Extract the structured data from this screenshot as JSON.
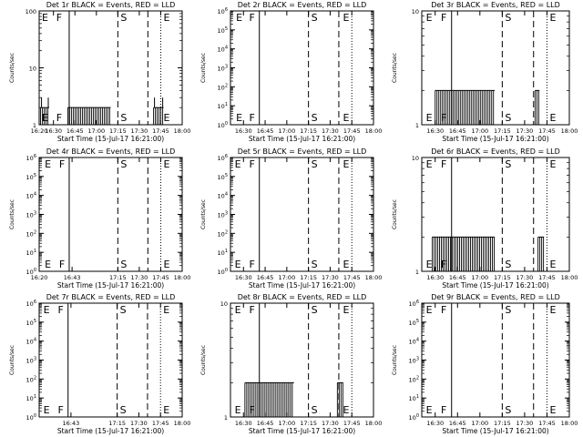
{
  "figure": {
    "shared": {
      "ylabel": "Counts/sec",
      "xlabel": "Start Time (15-Jul-17 16:21:00)",
      "time_ticks": [
        "16:30",
        "16:45",
        "17:00",
        "17:15",
        "17:30",
        "17:45",
        "18:00"
      ],
      "time_ticks_det1r": [
        "16:20",
        "16:30",
        "16:45",
        "17:00",
        "17:15",
        "17:30",
        "17:45",
        "18:00"
      ],
      "series": [
        "BLACK = Events",
        "RED = LLD"
      ],
      "colors": {
        "events": "#000000",
        "lld": "#ff0000",
        "axes": "#000000",
        "background": "#ffffff"
      }
    }
  },
  "chart_data": [
    {
      "title": "Det 1r BLACK = Events, RED = LLD",
      "type": "line",
      "scale": "log",
      "ylim": [
        1,
        100
      ],
      "y_ticks": [
        "1",
        "10",
        "100"
      ],
      "xlim": [
        "16:20",
        "18:00"
      ],
      "x_ticks": [
        "16:20",
        "16:30",
        "16:45",
        "17:00",
        "17:15",
        "17:30",
        "17:45",
        "18:00"
      ],
      "markers": [
        {
          "label": "E",
          "time": "16:20"
        },
        {
          "label": "F",
          "time": "16:30"
        },
        {
          "label": "S",
          "time": "17:15"
        },
        {
          "label": "E",
          "time": "17:45"
        }
      ],
      "solid_line_time": "16:41",
      "dotted_line_times": [
        "17:45",
        "18:00"
      ],
      "dashed_line_times": [
        "17:15",
        "17:36"
      ],
      "events": [
        {
          "from": "16:21",
          "to": "16:27",
          "value": 2,
          "spike": 3
        },
        {
          "from": "16:40",
          "to": "17:10",
          "value": 2
        },
        {
          "from": "17:40",
          "to": "17:47",
          "value": 2,
          "spike": 3
        }
      ]
    },
    {
      "title": "Det 2r BLACK = Events, RED = LLD",
      "type": "line",
      "scale": "log",
      "ylim": [
        1,
        1000000
      ],
      "y_ticks": [
        "10^0",
        "10^1",
        "10^2",
        "10^3",
        "10^4",
        "10^5",
        "10^6"
      ],
      "xlim": [
        "16:21",
        "18:00"
      ],
      "x_ticks": [
        "16:30",
        "16:45",
        "17:00",
        "17:15",
        "17:30",
        "17:45",
        "18:00"
      ],
      "markers": [
        {
          "label": "E",
          "time": "16:23"
        },
        {
          "label": "F",
          "time": "16:32"
        },
        {
          "label": "S",
          "time": "17:15"
        },
        {
          "label": "E",
          "time": "17:37"
        }
      ],
      "solid_line_time": "16:41",
      "dotted_line_times": [
        "17:45",
        "18:00"
      ],
      "dashed_line_times": [
        "17:15",
        "17:36"
      ],
      "events": []
    },
    {
      "title": "Det 3r BLACK = Events, RED = LLD",
      "type": "line",
      "scale": "log",
      "ylim": [
        1,
        10
      ],
      "y_ticks": [
        "1",
        "10"
      ],
      "xlim": [
        "16:21",
        "18:00"
      ],
      "x_ticks": [
        "16:30",
        "16:45",
        "17:00",
        "17:15",
        "17:30",
        "17:45",
        "18:00"
      ],
      "markers": [
        {
          "label": "E",
          "time": "16:22"
        },
        {
          "label": "F",
          "time": "16:32"
        },
        {
          "label": "S",
          "time": "17:15"
        },
        {
          "label": "E",
          "time": "17:45"
        }
      ],
      "solid_line_time": "16:41",
      "dotted_line_times": [
        "17:45",
        "18:00"
      ],
      "dashed_line_times": [
        "17:15",
        "17:36"
      ],
      "events": [
        {
          "from": "16:30",
          "to": "17:10",
          "value": 2
        },
        {
          "from": "17:37",
          "to": "17:40",
          "value": 2
        }
      ]
    },
    {
      "title": "Det 4r BLACK = Events, RED = LLD",
      "type": "line",
      "scale": "log",
      "ylim": [
        1,
        1000000
      ],
      "y_ticks": [
        "10^0",
        "10^1",
        "10^2",
        "10^3",
        "10^4",
        "10^5",
        "10^6"
      ],
      "xlim": [
        "16:20",
        "18:00"
      ],
      "x_ticks": [
        "16:20",
        "16:43",
        "17:15",
        "17:30",
        "17:45",
        "18:00"
      ],
      "markers": [
        {
          "label": "E",
          "time": "16:22"
        },
        {
          "label": "F",
          "time": "16:32"
        },
        {
          "label": "S",
          "time": "17:15"
        },
        {
          "label": "E",
          "time": "17:45"
        }
      ],
      "solid_line_time": "16:41",
      "dotted_line_times": [
        "17:45",
        "18:00"
      ],
      "dashed_line_times": [
        "17:15",
        "17:36"
      ],
      "events": []
    },
    {
      "title": "Det 5r BLACK = Events, RED = LLD",
      "type": "line",
      "scale": "log",
      "ylim": [
        1,
        1000000
      ],
      "y_ticks": [
        "10^0",
        "10^1",
        "10^2",
        "10^3",
        "10^4",
        "10^5",
        "10^6"
      ],
      "xlim": [
        "16:21",
        "18:00"
      ],
      "x_ticks": [
        "16:30",
        "16:45",
        "17:00",
        "17:15",
        "17:30",
        "17:45",
        "18:00"
      ],
      "markers": [
        {
          "label": "E",
          "time": "16:22"
        },
        {
          "label": "F",
          "time": "16:32"
        },
        {
          "label": "S",
          "time": "17:15"
        },
        {
          "label": "E",
          "time": "17:37"
        }
      ],
      "solid_line_time": "16:41",
      "dotted_line_times": [
        "17:45",
        "18:00"
      ],
      "dashed_line_times": [
        "17:15",
        "17:36"
      ],
      "events": []
    },
    {
      "title": "Det 6r BLACK = Events, RED = LLD",
      "type": "line",
      "scale": "log",
      "ylim": [
        1,
        10
      ],
      "y_ticks": [
        "1",
        "10"
      ],
      "xlim": [
        "16:21",
        "18:00"
      ],
      "x_ticks": [
        "16:30",
        "16:45",
        "17:00",
        "17:15",
        "17:30",
        "17:45",
        "18:00"
      ],
      "markers": [
        {
          "label": "E",
          "time": "16:22"
        },
        {
          "label": "F",
          "time": "16:32"
        },
        {
          "label": "S",
          "time": "17:15"
        },
        {
          "label": "E",
          "time": "17:45"
        }
      ],
      "solid_line_time": "16:41",
      "dotted_line_times": [
        "17:45",
        "18:00"
      ],
      "dashed_line_times": [
        "17:15",
        "17:36"
      ],
      "events": [
        {
          "from": "16:28",
          "to": "17:10",
          "value": 2
        },
        {
          "from": "17:39",
          "to": "17:43",
          "value": 2
        }
      ]
    },
    {
      "title": "Det 7r BLACK = Events, RED = LLD",
      "type": "line",
      "scale": "log",
      "ylim": [
        1,
        1000000
      ],
      "y_ticks": [
        "10^0",
        "10^1",
        "10^2",
        "10^3",
        "10^4",
        "10^5",
        "10^6"
      ],
      "xlim": [
        "16:21",
        "18:00"
      ],
      "x_ticks": [
        "16:43",
        "17:15",
        "17:30",
        "17:45",
        "18:00"
      ],
      "markers": [
        {
          "label": "E",
          "time": "16:22"
        },
        {
          "label": "F",
          "time": "16:32"
        },
        {
          "label": "S",
          "time": "17:15"
        },
        {
          "label": "E",
          "time": "17:45"
        }
      ],
      "solid_line_time": "16:41",
      "dotted_line_times": [
        "17:45",
        "18:00"
      ],
      "dashed_line_times": [
        "17:15",
        "17:36"
      ],
      "events": []
    },
    {
      "title": "Det 8r BLACK = Events, RED = LLD",
      "type": "line",
      "scale": "log",
      "ylim": [
        1,
        10
      ],
      "y_ticks": [
        "1",
        "10"
      ],
      "xlim": [
        "16:21",
        "18:00"
      ],
      "x_ticks": [
        "16:30",
        "16:45",
        "17:00",
        "17:15",
        "17:30",
        "17:45",
        "18:00"
      ],
      "markers": [
        {
          "label": "E",
          "time": "16:22"
        },
        {
          "label": "F",
          "time": "16:32"
        },
        {
          "label": "S",
          "time": "17:15"
        },
        {
          "label": "E",
          "time": "17:37"
        }
      ],
      "solid_line_time": "16:41",
      "dotted_line_times": [
        "17:45",
        "18:00"
      ],
      "dashed_line_times": [
        "17:15",
        "17:36"
      ],
      "events": [
        {
          "from": "16:31",
          "to": "17:05",
          "value": 2
        },
        {
          "from": "17:35",
          "to": "17:39",
          "value": 2
        }
      ]
    },
    {
      "title": "Det 9r BLACK = Events, RED = LLD",
      "type": "line",
      "scale": "log",
      "ylim": [
        1,
        1000000
      ],
      "y_ticks": [
        "10^0",
        "10^1",
        "10^2",
        "10^3",
        "10^4",
        "10^5",
        "10^6"
      ],
      "xlim": [
        "16:21",
        "18:00"
      ],
      "x_ticks": [
        "16:30",
        "16:45",
        "17:00",
        "17:15",
        "17:30",
        "17:45",
        "18:00"
      ],
      "markers": [
        {
          "label": "E",
          "time": "16:22"
        },
        {
          "label": "F",
          "time": "16:32"
        },
        {
          "label": "S",
          "time": "17:15"
        },
        {
          "label": "E",
          "time": "17:45"
        }
      ],
      "solid_line_time": "16:41",
      "dotted_line_times": [
        "17:45",
        "18:00"
      ],
      "dashed_line_times": [
        "17:15",
        "17:36"
      ],
      "events": []
    }
  ]
}
